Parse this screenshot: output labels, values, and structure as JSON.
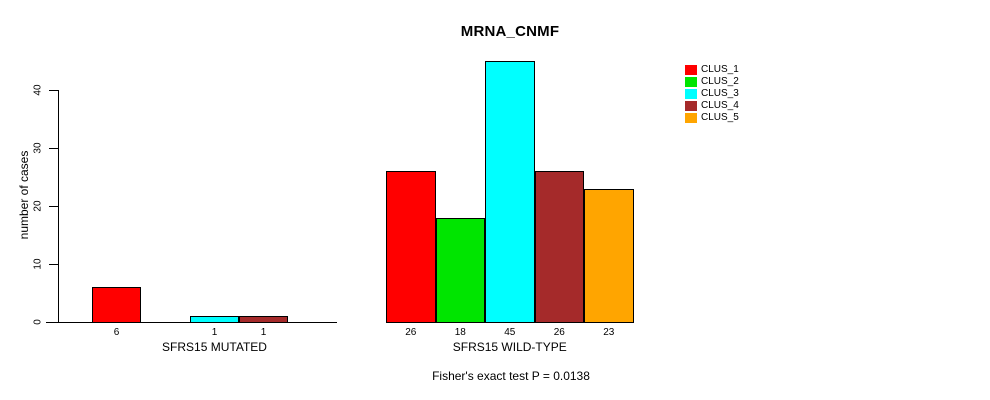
{
  "chart_data": {
    "type": "bar",
    "title": "MRNA_CNMF",
    "ylabel": "number of cases",
    "xlabel": "",
    "annotation": "Fisher's exact test P = 0.0138",
    "ylim": [
      0,
      45
    ],
    "yticks": [
      0,
      10,
      20,
      30,
      40
    ],
    "grid": false,
    "legend_position": "top-right",
    "bar_value_labels": true,
    "series": [
      {
        "name": "CLUS_1",
        "color": "#FF0000"
      },
      {
        "name": "CLUS_2",
        "color": "#00E500"
      },
      {
        "name": "CLUS_3",
        "color": "#00FFFF"
      },
      {
        "name": "CLUS_4",
        "color": "#A52A2A"
      },
      {
        "name": "CLUS_5",
        "color": "#FFA500"
      }
    ],
    "groups": [
      {
        "label": "SFRS15 MUTATED",
        "values": [
          6,
          0,
          1,
          1,
          0
        ]
      },
      {
        "label": "SFRS15 WILD-TYPE",
        "values": [
          26,
          18,
          45,
          26,
          23
        ]
      }
    ]
  }
}
